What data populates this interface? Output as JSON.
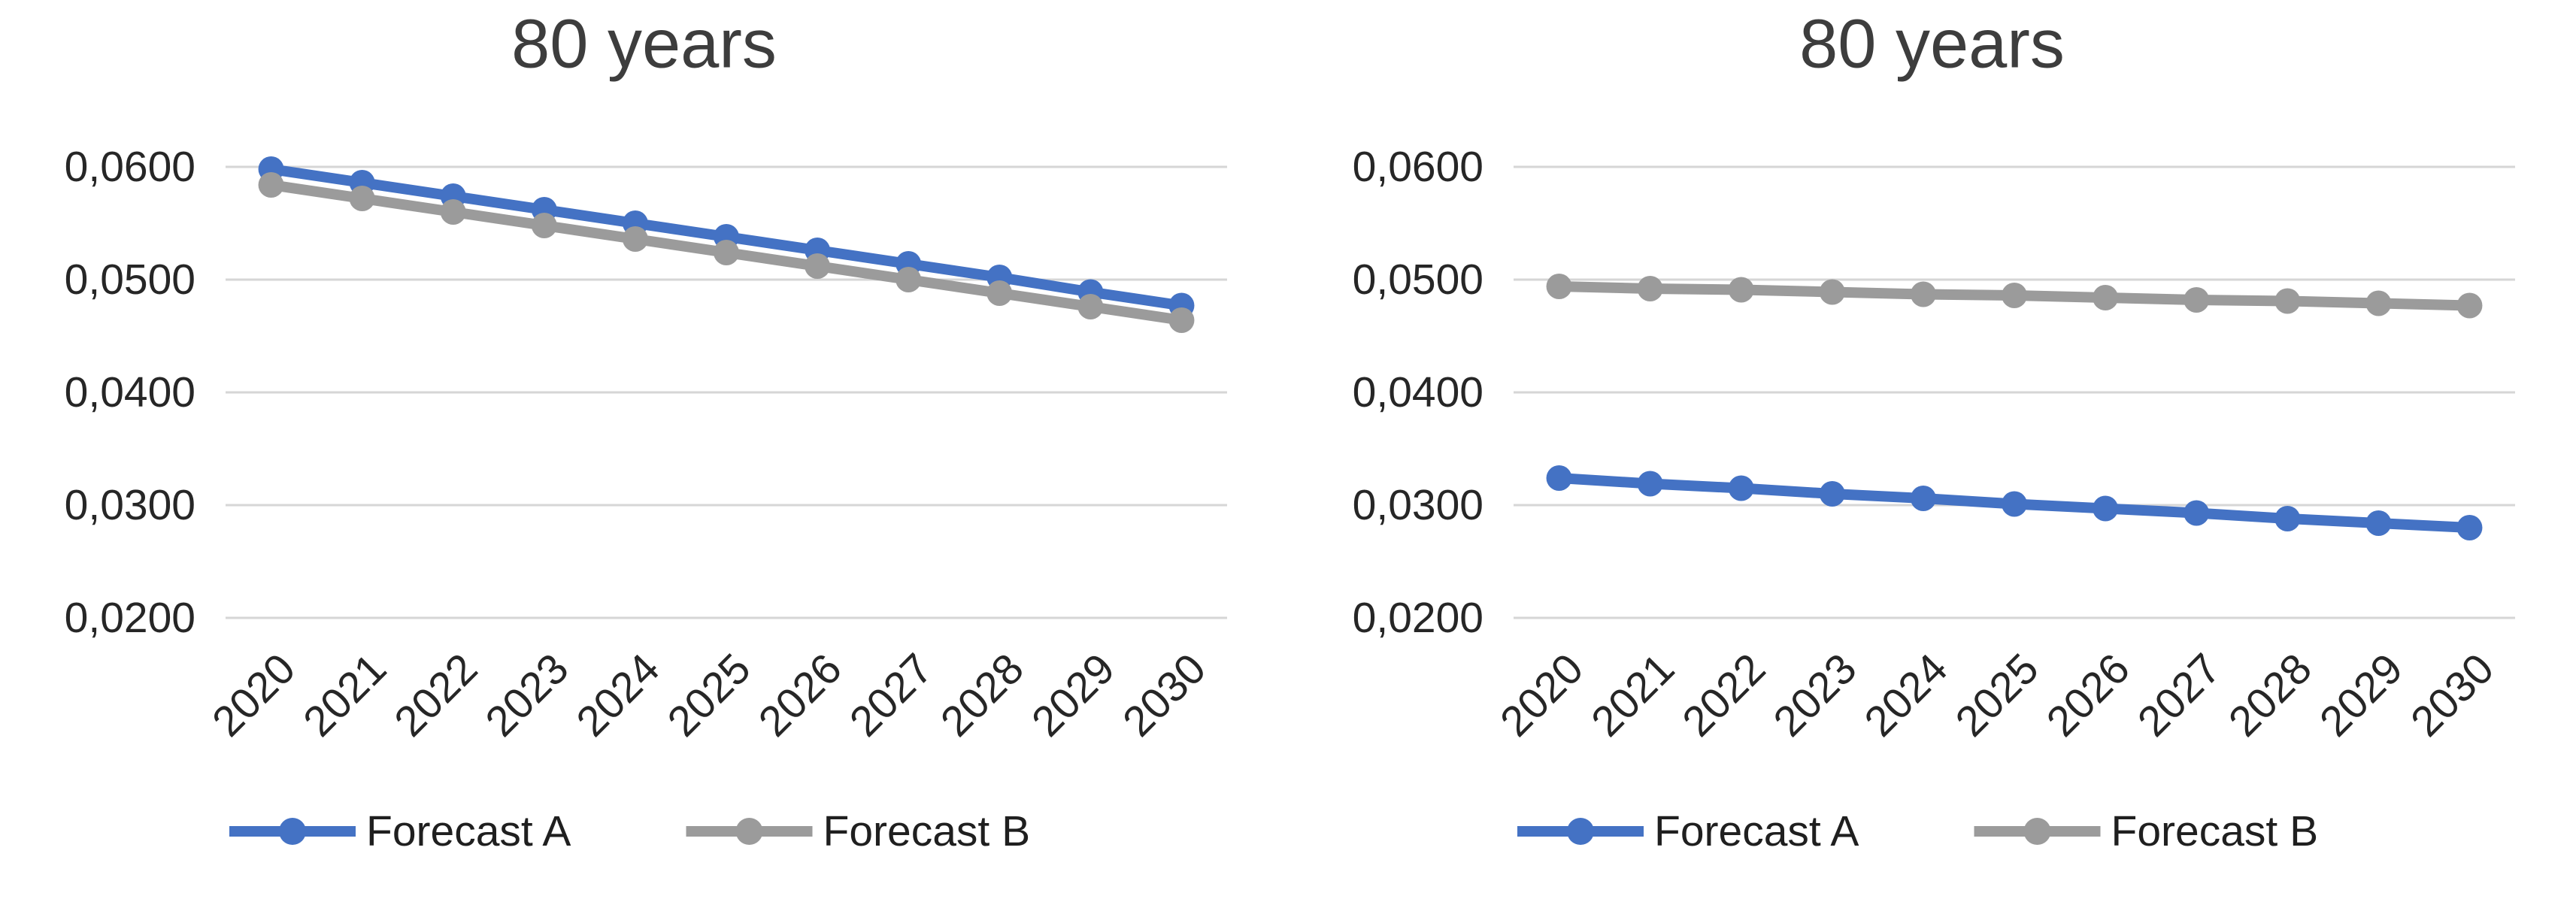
{
  "colors": {
    "forecast_a": "#4472C4",
    "forecast_b": "#9B9B9B",
    "gridline": "#D6D6D6",
    "title_text": "#3D3D3D",
    "axis_text": "#262626",
    "legend_text": "#1F1F1F",
    "background": "#FFFFFF"
  },
  "chart_data": [
    {
      "type": "line",
      "title": "80 years",
      "categories": [
        "2020",
        "2021",
        "2022",
        "2023",
        "2024",
        "2025",
        "2026",
        "2027",
        "2028",
        "2029",
        "2030"
      ],
      "series": [
        {
          "name": "Forecast A",
          "color": "forecast_a",
          "values": [
            0.0598,
            0.0586,
            0.0574,
            0.0562,
            0.055,
            0.0538,
            0.0526,
            0.0514,
            0.0502,
            0.0489,
            0.0477
          ]
        },
        {
          "name": "Forecast B",
          "color": "forecast_b",
          "values": [
            0.0584,
            0.0572,
            0.056,
            0.0548,
            0.0536,
            0.0524,
            0.0512,
            0.05,
            0.0488,
            0.0476,
            0.0464
          ]
        }
      ],
      "ylim": [
        0.02,
        0.06
      ],
      "y_ticks": [
        {
          "value": 0.06,
          "label": "0,0600"
        },
        {
          "value": 0.05,
          "label": "0,0500"
        },
        {
          "value": 0.04,
          "label": "0,0400"
        },
        {
          "value": 0.03,
          "label": "0,0300"
        },
        {
          "value": 0.02,
          "label": "0,0200"
        }
      ],
      "grid": true,
      "legend_position": "bottom",
      "x_tick_rotation": 45
    },
    {
      "type": "line",
      "title": "80 years",
      "categories": [
        "2020",
        "2021",
        "2022",
        "2023",
        "2024",
        "2025",
        "2026",
        "2027",
        "2028",
        "2029",
        "2030"
      ],
      "series": [
        {
          "name": "Forecast A",
          "color": "forecast_a",
          "values": [
            0.0324,
            0.0319,
            0.0315,
            0.031,
            0.0306,
            0.0301,
            0.0297,
            0.0293,
            0.0288,
            0.0284,
            0.028
          ]
        },
        {
          "name": "Forecast B",
          "color": "forecast_b",
          "values": [
            0.0494,
            0.0492,
            0.0491,
            0.0489,
            0.0487,
            0.0486,
            0.0484,
            0.0482,
            0.0481,
            0.0479,
            0.0477
          ]
        }
      ],
      "ylim": [
        0.02,
        0.06
      ],
      "y_ticks": [
        {
          "value": 0.06,
          "label": "0,0600"
        },
        {
          "value": 0.05,
          "label": "0,0500"
        },
        {
          "value": 0.04,
          "label": "0,0400"
        },
        {
          "value": 0.03,
          "label": "0,0300"
        },
        {
          "value": 0.02,
          "label": "0,0200"
        }
      ],
      "grid": true,
      "legend_position": "bottom",
      "x_tick_rotation": 45
    }
  ]
}
